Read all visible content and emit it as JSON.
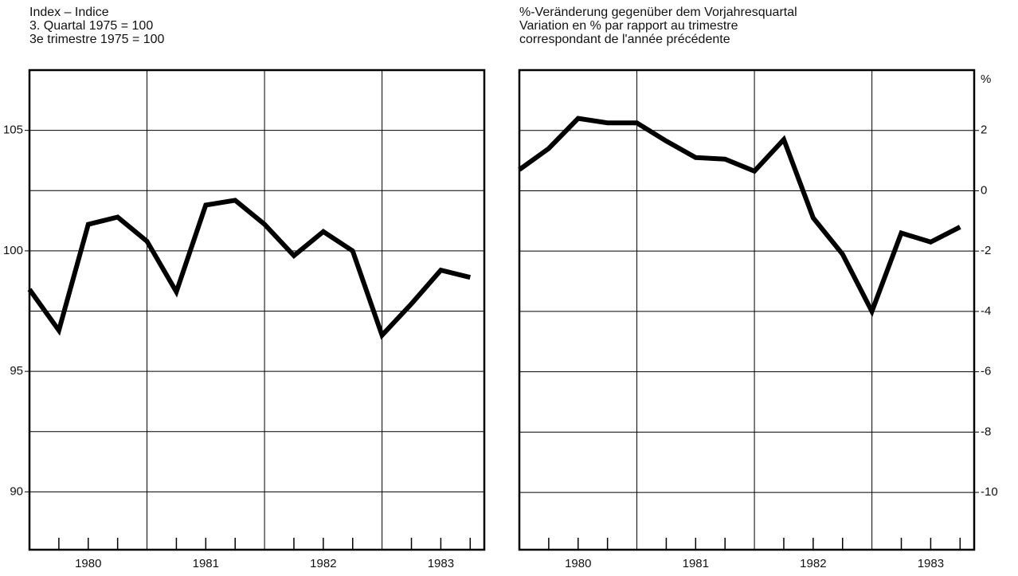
{
  "chart_data": [
    {
      "type": "line",
      "title": [
        "Index – Indice",
        "3. Quartal 1975 = 100",
        "3e trimestre 1975 = 100"
      ],
      "x": [
        1980,
        1980.25,
        1980.5,
        1980.75,
        1981,
        1981.25,
        1981.5,
        1981.75,
        1982,
        1982.25,
        1982.5,
        1982.75,
        1983,
        1983.25,
        1983.5,
        1983.75
      ],
      "series": [
        {
          "color": "#000000",
          "values": [
            98.4,
            96.7,
            101.1,
            101.4,
            100.4,
            98.3,
            101.9,
            102.1,
            101.1,
            99.8,
            100.8,
            100.0,
            96.5,
            97.8,
            99.2,
            98.9
          ]
        }
      ],
      "xlim": [
        1980,
        1983.87
      ],
      "xticks": [
        {
          "value": 1980.5,
          "label": "1980"
        },
        {
          "value": 1981.5,
          "label": "1981"
        },
        {
          "value": 1982.5,
          "label": "1982"
        },
        {
          "value": 1983.5,
          "label": "1983"
        }
      ],
      "xgrid": [
        1981,
        1982,
        1983
      ],
      "xminor": [
        1980.25,
        1980.5,
        1980.75,
        1981.25,
        1981.5,
        1981.75,
        1982.25,
        1982.5,
        1982.75,
        1983.25,
        1983.5,
        1983.75
      ],
      "ylim": [
        87.6,
        107.5
      ],
      "yticks": [
        90,
        95,
        100,
        105
      ],
      "ygrid_minor": [
        92.5,
        97.5,
        102.5
      ],
      "yaxis_side": "left",
      "grid": true
    },
    {
      "type": "line",
      "title": [
        "%-Veränderung gegenüber dem Vorjahresquartal",
        "Variation en % par rapport au trimestre",
        "correspondant de l'année précédente"
      ],
      "ylabel": "%",
      "x": [
        1980,
        1980.25,
        1980.5,
        1980.75,
        1981,
        1981.25,
        1981.5,
        1981.75,
        1982,
        1982.25,
        1982.5,
        1982.75,
        1983,
        1983.25,
        1983.5,
        1983.75
      ],
      "series": [
        {
          "color": "#000000",
          "values": [
            0.7,
            1.4,
            2.4,
            2.25,
            2.25,
            1.65,
            1.1,
            1.05,
            0.65,
            1.7,
            -0.9,
            -2.1,
            -4.0,
            -1.4,
            -1.7,
            -1.2
          ]
        }
      ],
      "xlim": [
        1980,
        1983.87
      ],
      "xticks": [
        {
          "value": 1980.5,
          "label": "1980"
        },
        {
          "value": 1981.5,
          "label": "1981"
        },
        {
          "value": 1982.5,
          "label": "1982"
        },
        {
          "value": 1983.5,
          "label": "1983"
        }
      ],
      "xgrid": [
        1981,
        1982,
        1983
      ],
      "xminor": [
        1980.25,
        1980.5,
        1980.75,
        1981.25,
        1981.5,
        1981.75,
        1982.25,
        1982.5,
        1982.75,
        1983.25,
        1983.5,
        1983.75
      ],
      "ylim": [
        -11.9,
        4.0
      ],
      "yticks": [
        -10,
        -8,
        -6,
        -4,
        -2,
        0,
        2
      ],
      "ygrid_minor": [],
      "yaxis_side": "right",
      "grid": true
    }
  ]
}
